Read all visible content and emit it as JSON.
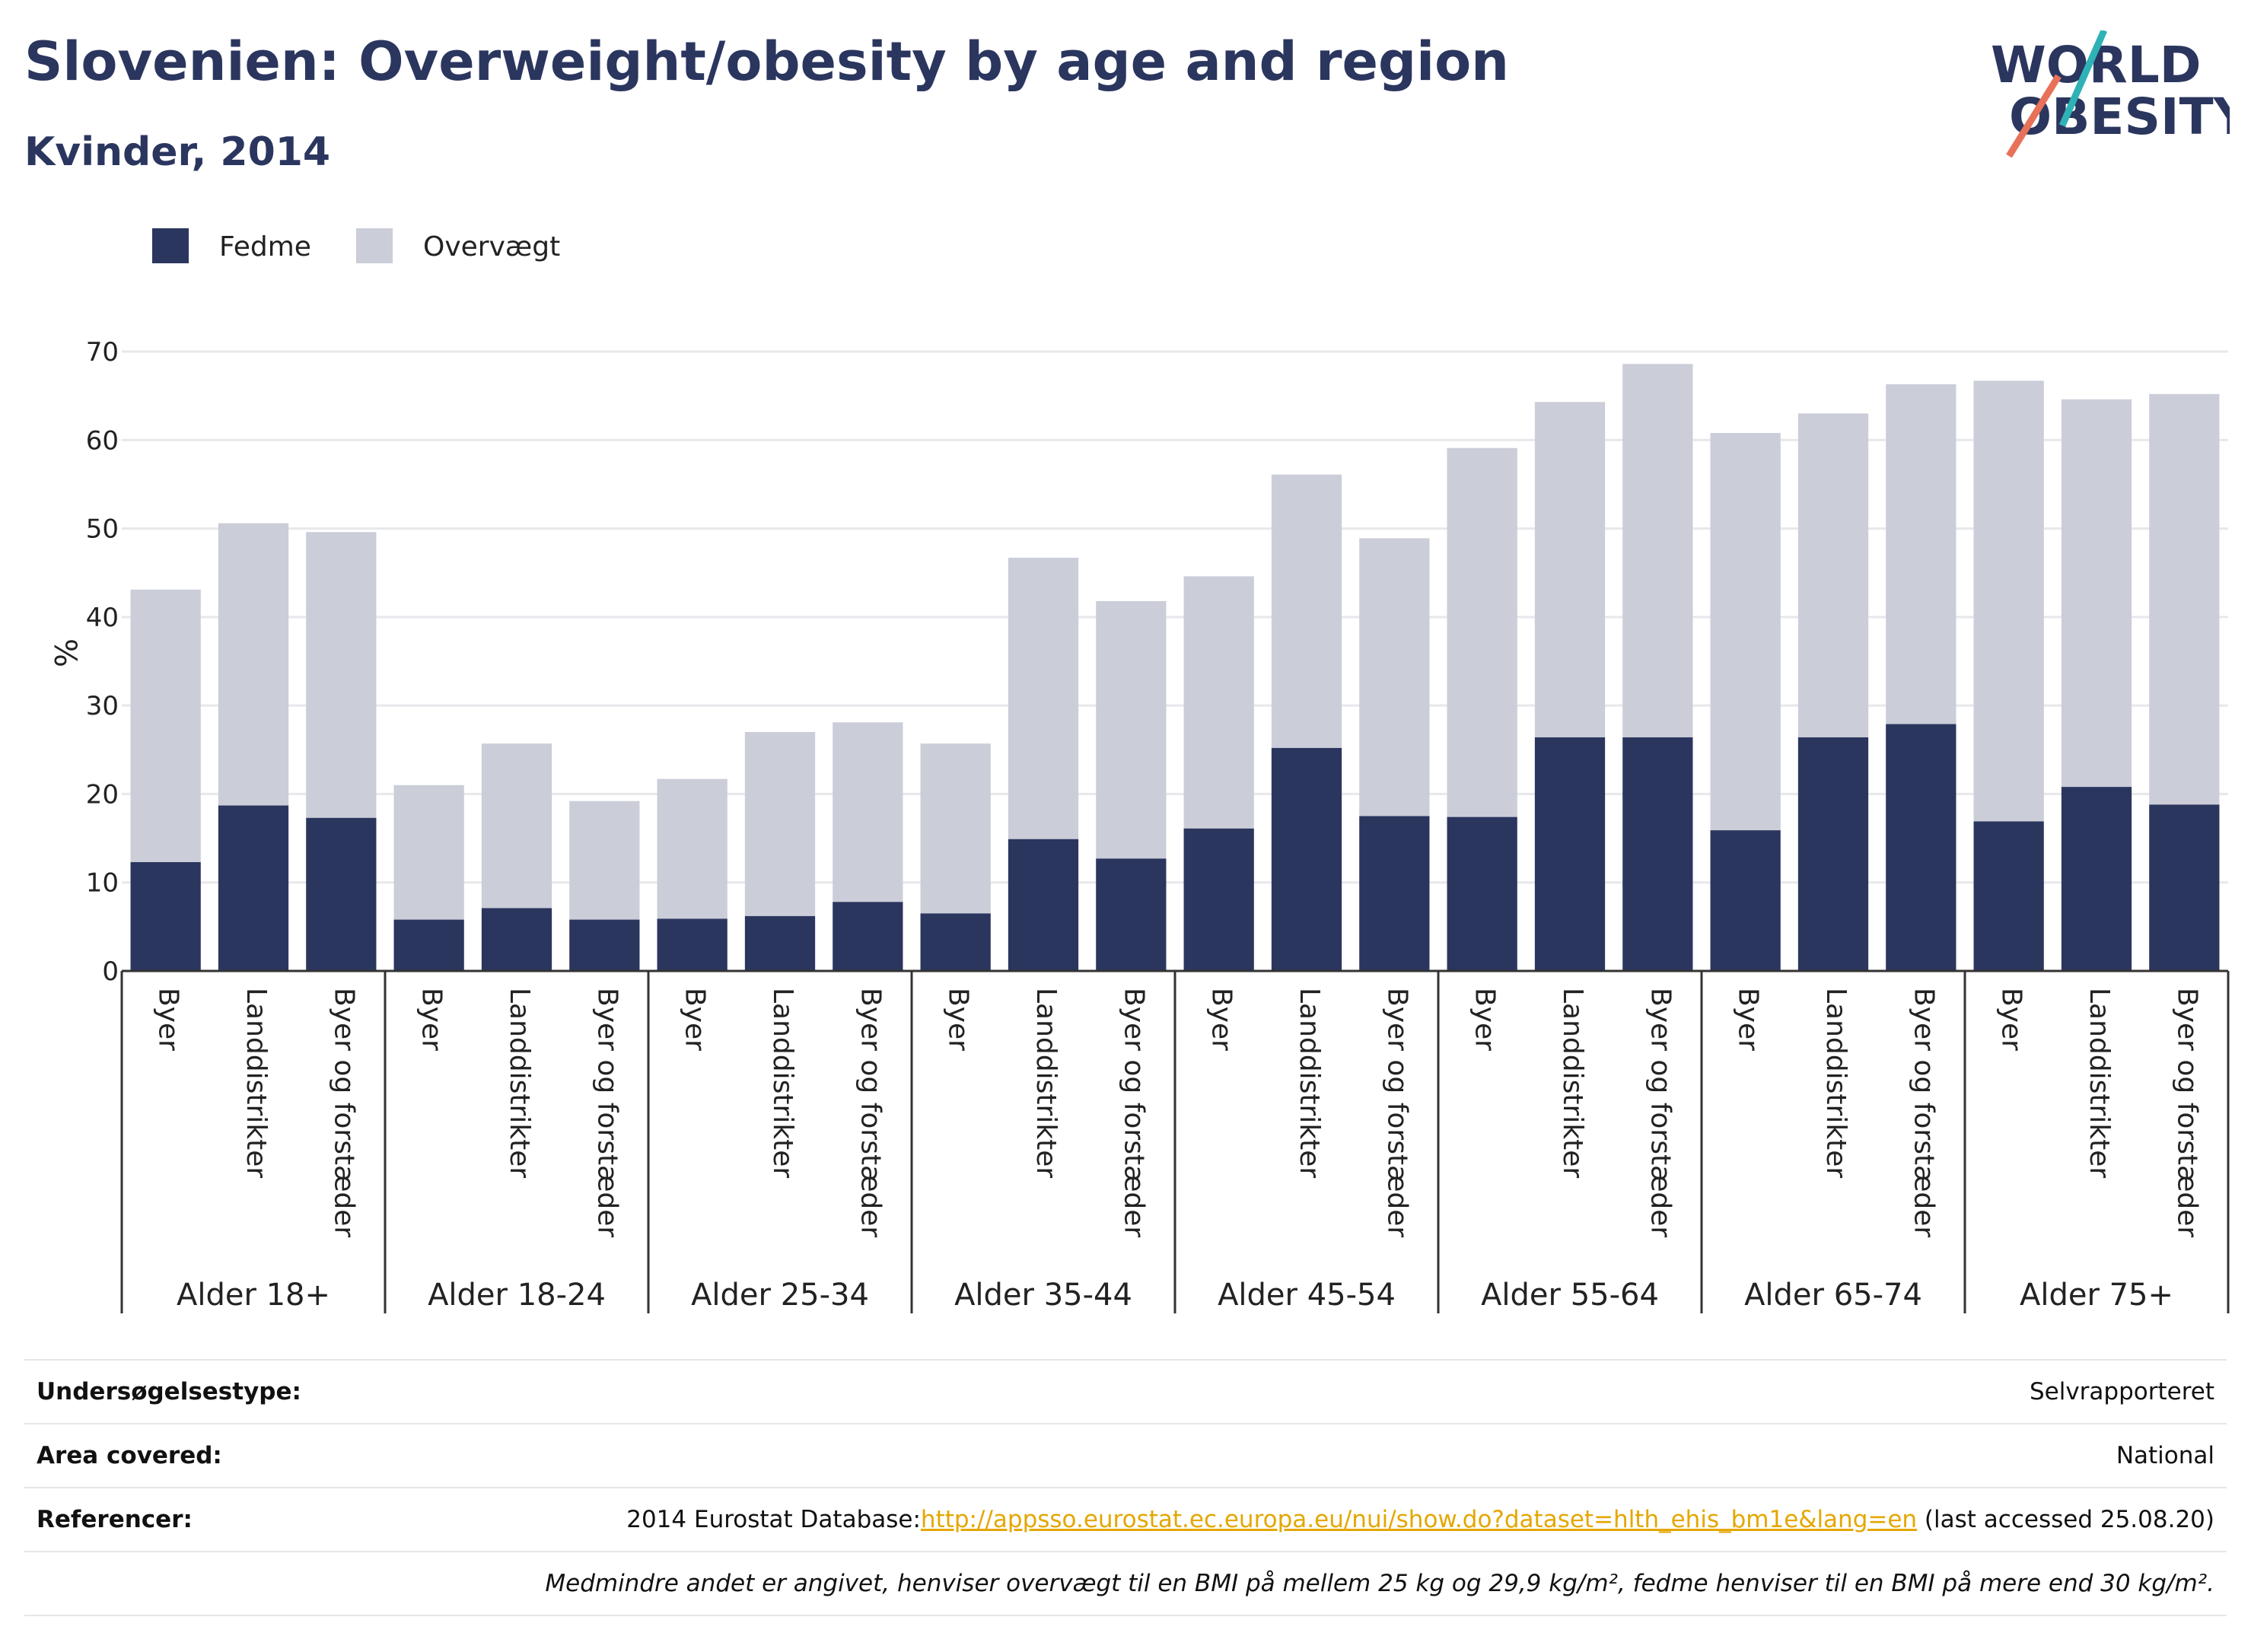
{
  "title": "Slovenien: Overweight/obesity by age and region",
  "subtitle": "Kvinder, 2014",
  "logo": {
    "line1": "WORLD",
    "line2": "OBESITY"
  },
  "colors": {
    "fedme": "#2b365f",
    "overvaegt": "#cbcdd8",
    "title": "#2b365f",
    "link": "#e4a700"
  },
  "chart_data": {
    "type": "bar",
    "stacked": true,
    "ylabel": "%",
    "ylim": [
      0,
      70
    ],
    "yticks": [
      0,
      10,
      20,
      30,
      40,
      50,
      60,
      70
    ],
    "grid": true,
    "legend_position": "top-left",
    "legend": [
      "Fedme",
      "Overvægt"
    ],
    "groups": [
      "Alder 18+",
      "Alder 18-24",
      "Alder 25-34",
      "Alder 35-44",
      "Alder 45-54",
      "Alder 55-64",
      "Alder 65-74",
      "Alder 75+"
    ],
    "subcategories": [
      "Byer",
      "Landdistrikter",
      "Byer og forstæder"
    ],
    "series": [
      {
        "name": "Fedme",
        "values": [
          12.3,
          18.7,
          17.3,
          5.8,
          7.1,
          5.8,
          5.9,
          6.2,
          7.8,
          6.5,
          14.9,
          12.7,
          16.1,
          25.2,
          17.5,
          17.4,
          26.4,
          26.4,
          15.9,
          26.4,
          27.9,
          16.9,
          20.8,
          18.8
        ]
      },
      {
        "name": "Overvægt",
        "values": [
          30.8,
          31.9,
          32.3,
          15.2,
          18.6,
          13.4,
          15.8,
          20.8,
          20.3,
          19.2,
          31.8,
          29.1,
          28.5,
          30.9,
          31.4,
          41.7,
          37.9,
          42.2,
          44.9,
          36.6,
          38.4,
          49.8,
          43.8,
          46.4
        ]
      }
    ]
  },
  "info": {
    "survey_label": "Undersøgelsestype:",
    "survey_value": "Selvrapporteret",
    "area_label": "Area covered:",
    "area_value": "National",
    "ref_label": "Referencer:",
    "ref_prefix": "2014 Eurostat Database:",
    "ref_link": "http://appsso.eurostat.ec.europa.eu/nui/show.do?dataset=hlth_ehis_bm1e&lang=en",
    "ref_suffix": " (last accessed 25.08.20)",
    "note": "Medmindre andet er angivet, henviser overvægt til en BMI på mellem 25 kg og 29,9 kg/m², fedme henviser til en BMI på mere end 30 kg/m²."
  }
}
